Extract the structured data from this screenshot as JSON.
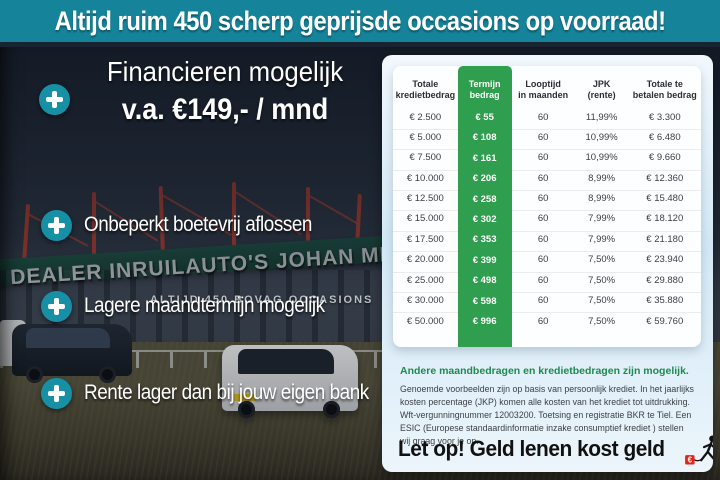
{
  "banner": {
    "text": "Altijd ruim 450 scherp geprijsde occasions op voorraad!"
  },
  "usp": {
    "finance_title": "Financieren mogelijk",
    "finance_price": "v.a. €149,- / mnd",
    "items": [
      "Onbeperkt boetevrij aflossen",
      "Lagere maandtermijn mogelijk",
      "Rente lager dan bij jouw eigen bank"
    ]
  },
  "photo_signage": {
    "dealer_sign": "DEALER INRUILAUTO'S JOHAN MEURE",
    "sub_sign": "ALTIJD 450  BOVAG  OCCASIONS"
  },
  "finance_table": {
    "headers": [
      {
        "line1": "Totale",
        "line2": "kredietbedrag"
      },
      {
        "line1": "Termijn",
        "line2": "bedrag"
      },
      {
        "line1": "Looptijd",
        "line2": "in maanden"
      },
      {
        "line1": "JPK",
        "line2": "(rente)"
      },
      {
        "line1": "Totale te",
        "line2": "betalen bedrag"
      }
    ],
    "rows": [
      [
        "€ 2.500",
        "€ 55",
        "60",
        "11,99%",
        "€ 3.300"
      ],
      [
        "€ 5.000",
        "€ 108",
        "60",
        "10,99%",
        "€ 6.480"
      ],
      [
        "€ 7.500",
        "€ 161",
        "60",
        "10,99%",
        "€ 9.660"
      ],
      [
        "€ 10.000",
        "€ 206",
        "60",
        "8,99%",
        "€ 12.360"
      ],
      [
        "€ 12.500",
        "€ 258",
        "60",
        "8,99%",
        "€ 15.480"
      ],
      [
        "€ 15.000",
        "€ 302",
        "60",
        "7,99%",
        "€ 18.120"
      ],
      [
        "€ 17.500",
        "€ 353",
        "60",
        "7,99%",
        "€ 21.180"
      ],
      [
        "€ 20.000",
        "€ 399",
        "60",
        "7,50%",
        "€ 23.940"
      ],
      [
        "€ 25.000",
        "€ 498",
        "60",
        "7,50%",
        "€ 29.880"
      ],
      [
        "€ 30.000",
        "€ 598",
        "60",
        "7,50%",
        "€ 35.880"
      ],
      [
        "€ 50.000",
        "€ 996",
        "60",
        "7,50%",
        "€ 59.760"
      ]
    ]
  },
  "disclaimer": {
    "heading": "Andere maandbedragen en kredietbedragen zijn mogelijk.",
    "body": "Genoemde voorbeelden zijn op basis van persoonlijk krediet. In het jaarlijks kosten percentage (JKP) komen alle kosten van het krediet tot uitdrukking. Wft-vergunningnummer 12003200. Toetsing en registratie BKR te Tiel. Een ESIC (Europese standaardinformatie inzake consumptief krediet ) stellen wij graag voor je op.",
    "warning": "Let op! Geld lenen kost geld"
  },
  "colors": {
    "banner_teal": "#15849B",
    "accent_teal": "#1790A6",
    "table_green": "#2F9E4E",
    "heading_green": "#1E8A4C",
    "warning_red": "#E2231A"
  }
}
